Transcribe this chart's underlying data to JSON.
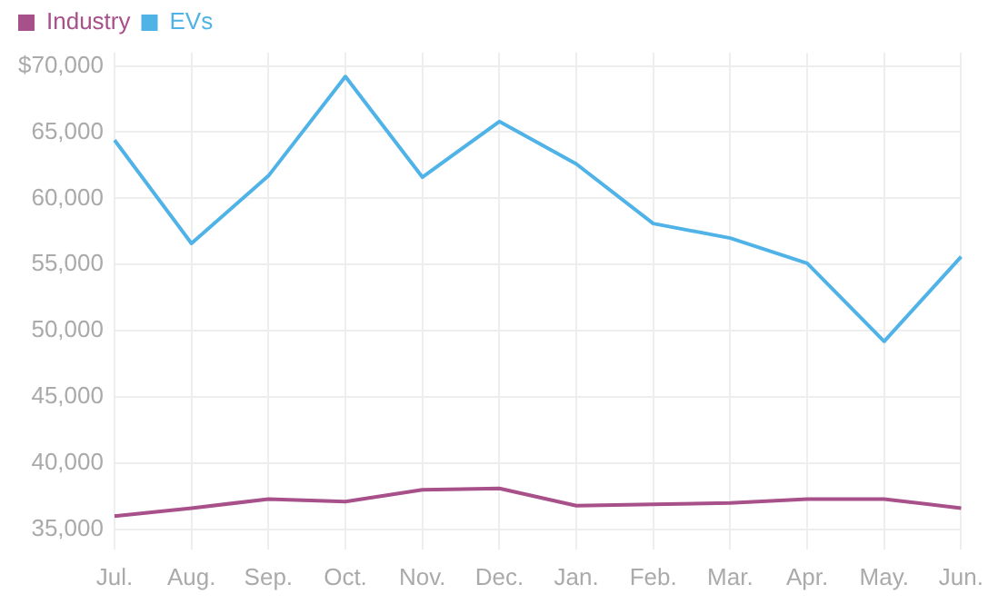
{
  "chart_data": {
    "type": "line",
    "categories": [
      "Jul.",
      "Aug.",
      "Sep.",
      "Oct.",
      "Nov.",
      "Dec.",
      "Jan.",
      "Feb.",
      "Mar.",
      "Apr.",
      "May.",
      "Jun."
    ],
    "series": [
      {
        "name": "Industry",
        "color": "#a8508a",
        "values": [
          36000,
          36600,
          37300,
          37100,
          38000,
          38100,
          36800,
          36900,
          37000,
          37300,
          37300,
          36600
        ]
      },
      {
        "name": "EVs",
        "color": "#4fb3e8",
        "values": [
          64400,
          56600,
          61700,
          69200,
          61600,
          65800,
          62600,
          58100,
          57000,
          55100,
          49200,
          55600
        ]
      }
    ],
    "ylim": [
      33500,
      71000
    ],
    "yticks": [
      {
        "value": 35000,
        "label": "35,000"
      },
      {
        "value": 40000,
        "label": "40,000"
      },
      {
        "value": 45000,
        "label": "45,000"
      },
      {
        "value": 50000,
        "label": "50,000"
      },
      {
        "value": 55000,
        "label": "55,000"
      },
      {
        "value": 60000,
        "label": "60,000"
      },
      {
        "value": 65000,
        "label": "65,000"
      },
      {
        "value": 70000,
        "label": "$70,000"
      }
    ],
    "grid": true,
    "legend": "top left",
    "marker": "none",
    "line_style": "solid"
  }
}
